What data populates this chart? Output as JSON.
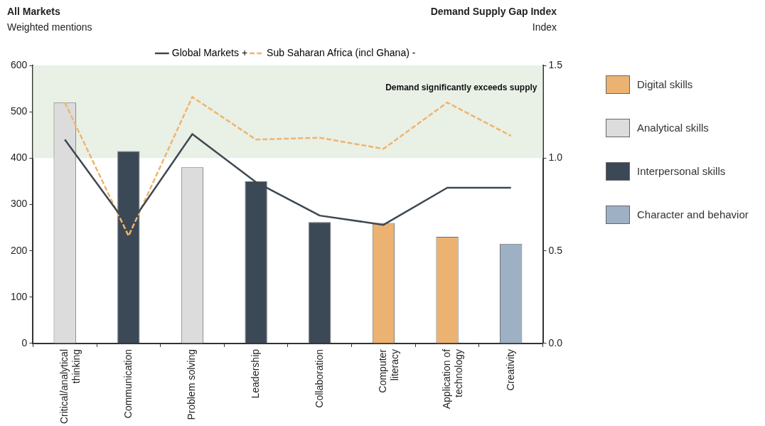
{
  "chart_data": {
    "type": "bar",
    "title": "All Markets",
    "ylabel": "Weighted mentions",
    "subtitle": "Demand Supply Gap Index",
    "y2label": "Index",
    "categories": [
      "Critical/analytical thinking",
      "Communication",
      "Problem solving",
      "Leadership",
      "Collaboration",
      "Computer literacy",
      "Application of technology",
      "Creativity"
    ],
    "series": [
      {
        "name": "Digital skills",
        "color": "#ebb272",
        "values": [
          null,
          null,
          null,
          null,
          null,
          260,
          230,
          null
        ]
      },
      {
        "name": "Analytical skills",
        "color": "#dcdcdc",
        "values": [
          520,
          null,
          380,
          null,
          null,
          null,
          null,
          null
        ]
      },
      {
        "name": "Interpersonal skills",
        "color": "#3b4856",
        "values": [
          null,
          415,
          null,
          350,
          262,
          null,
          null,
          null
        ]
      },
      {
        "name": "Character and behavior",
        "color": "#9eb0c3",
        "values": [
          null,
          null,
          null,
          null,
          null,
          null,
          null,
          215
        ]
      },
      {
        "name": "Global Markets +",
        "type": "line",
        "axis": "y2",
        "color": "#3d4852",
        "line_style": "solid",
        "values": [
          1.1,
          0.63,
          1.13,
          0.87,
          0.69,
          0.64,
          0.84,
          0.84
        ]
      },
      {
        "name": "Sub Saharan Africa (incl Ghana) -",
        "type": "line",
        "axis": "y2",
        "color": "#f0b46e",
        "line_style": "dashed",
        "values": [
          1.3,
          0.58,
          1.33,
          1.1,
          1.11,
          1.05,
          1.3,
          1.12
        ]
      }
    ],
    "ylim": [
      0,
      600
    ],
    "yticks": [
      0,
      100,
      200,
      300,
      400,
      500,
      600
    ],
    "y2lim": [
      0,
      1.5
    ],
    "y2ticks": [
      {
        "value": 0,
        "label": "0.0"
      },
      {
        "value": 0.5,
        "label": "0.5"
      },
      {
        "value": 1,
        "label": "1.0"
      },
      {
        "value": 1.5,
        "label": "1.5"
      }
    ],
    "bands": [
      {
        "axis": "y2",
        "from": 1,
        "to": 1.5,
        "label": "Demand significantly exceeds supply",
        "color": "#e9f0e6"
      }
    ],
    "grid": false,
    "legend": "top",
    "marker": "none"
  }
}
